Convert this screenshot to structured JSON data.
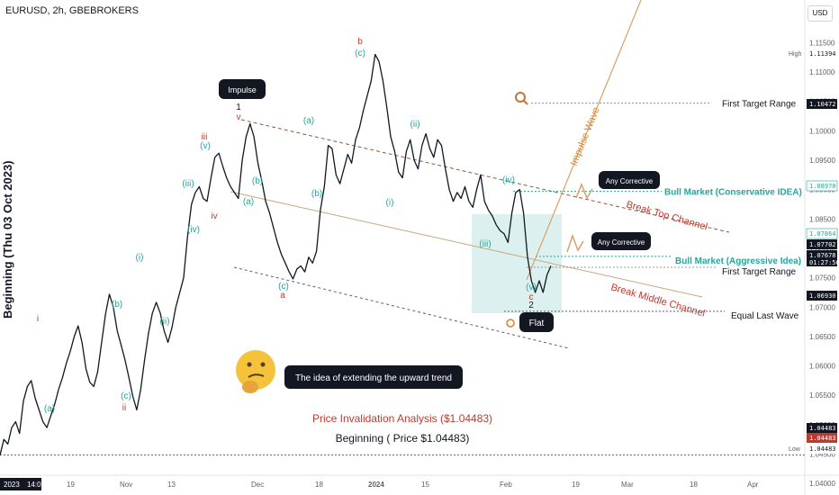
{
  "header": {
    "symbol": "EURUSD, 2h, GBEBROKERS",
    "currency": "USD"
  },
  "left_label": "Beginning (Thu 03 Oct 2023)",
  "chart_data": {
    "type": "line",
    "ylim": [
      1.0414,
      1.1192
    ],
    "price_ticks": [
      "1.11500",
      "1.11000",
      "1.10500",
      "1.10000",
      "1.09500",
      "1.09000",
      "1.08500",
      "1.08000",
      "1.07500",
      "1.07000",
      "1.06500",
      "1.06000",
      "1.05500",
      "1.05000",
      "1.04500",
      "1.04000"
    ],
    "time_ticks": [
      "2023",
      "14:00",
      "19",
      "Nov",
      "13",
      "Dec",
      "18",
      "2024",
      "15",
      "Feb",
      "19",
      "Mar",
      "18",
      "Apr"
    ],
    "price_path": [
      [
        0,
        1.0448
      ],
      [
        1,
        1.0475
      ],
      [
        2,
        1.0467
      ],
      [
        3,
        1.0495
      ],
      [
        4,
        1.0505
      ],
      [
        5,
        1.0485
      ],
      [
        6,
        1.054
      ],
      [
        7,
        1.0565
      ],
      [
        8,
        1.0575
      ],
      [
        9,
        1.0545
      ],
      [
        10,
        1.0525
      ],
      [
        11,
        1.0505
      ],
      [
        12,
        1.0495
      ],
      [
        13,
        1.0515
      ],
      [
        14,
        1.0535
      ],
      [
        15,
        1.056
      ],
      [
        16,
        1.058
      ],
      [
        17,
        1.0605
      ],
      [
        18,
        1.0625
      ],
      [
        19,
        1.065
      ],
      [
        20,
        1.0668
      ],
      [
        21,
        1.064
      ],
      [
        22,
        1.0595
      ],
      [
        23,
        1.0572
      ],
      [
        24,
        1.0565
      ],
      [
        25,
        1.059
      ],
      [
        26,
        1.064
      ],
      [
        27,
        1.0688
      ],
      [
        28,
        1.0722
      ],
      [
        29,
        1.07
      ],
      [
        30,
        1.066
      ],
      [
        31,
        1.0635
      ],
      [
        32,
        1.061
      ],
      [
        33,
        1.058
      ],
      [
        34,
        1.0548
      ],
      [
        35,
        1.0525
      ],
      [
        36,
        1.056
      ],
      [
        37,
        1.061
      ],
      [
        38,
        1.0655
      ],
      [
        39,
        1.069
      ],
      [
        40,
        1.0708
      ],
      [
        41,
        1.069
      ],
      [
        42,
        1.066
      ],
      [
        43,
        1.064
      ],
      [
        44,
        1.0665
      ],
      [
        45,
        1.07
      ],
      [
        46,
        1.0725
      ],
      [
        47,
        1.075
      ],
      [
        48,
        1.082
      ],
      [
        49,
        1.0875
      ],
      [
        50,
        1.0895
      ],
      [
        51,
        1.0905
      ],
      [
        52,
        1.0885
      ],
      [
        53,
        1.088
      ],
      [
        54,
        1.092
      ],
      [
        55,
        1.0955
      ],
      [
        56,
        1.0962
      ],
      [
        57,
        1.094
      ],
      [
        58,
        1.092
      ],
      [
        59,
        1.0905
      ],
      [
        60,
        1.0895
      ],
      [
        61,
        1.0885
      ],
      [
        62,
        1.095
      ],
      [
        63,
        1.099
      ],
      [
        64,
        1.1012
      ],
      [
        65,
        1.099
      ],
      [
        66,
        1.0945
      ],
      [
        67,
        1.0915
      ],
      [
        68,
        1.088
      ],
      [
        69,
        1.086
      ],
      [
        70,
        1.0835
      ],
      [
        71,
        1.081
      ],
      [
        72,
        1.079
      ],
      [
        73,
        1.0775
      ],
      [
        74,
        1.076
      ],
      [
        75,
        1.0748
      ],
      [
        76,
        1.0765
      ],
      [
        77,
        1.077
      ],
      [
        78,
        1.076
      ],
      [
        79,
        1.0785
      ],
      [
        80,
        1.0775
      ],
      [
        81,
        1.0795
      ],
      [
        82,
        1.0865
      ],
      [
        83,
        1.0905
      ],
      [
        84,
        1.0975
      ],
      [
        85,
        1.097
      ],
      [
        86,
        1.0925
      ],
      [
        87,
        1.091
      ],
      [
        88,
        1.0935
      ],
      [
        89,
        1.096
      ],
      [
        90,
        1.0945
      ],
      [
        91,
        1.0985
      ],
      [
        92,
        1.1005
      ],
      [
        93,
        1.1035
      ],
      [
        94,
        1.106
      ],
      [
        95,
        1.1085
      ],
      [
        96,
        1.113
      ],
      [
        97,
        1.1118
      ],
      [
        98,
        1.1085
      ],
      [
        99,
        1.104
      ],
      [
        100,
        1.099
      ],
      [
        101,
        1.0965
      ],
      [
        102,
        1.093
      ],
      [
        103,
        1.092
      ],
      [
        104,
        1.0965
      ],
      [
        105,
        1.0985
      ],
      [
        106,
        1.095
      ],
      [
        107,
        1.0935
      ],
      [
        108,
        1.0975
      ],
      [
        109,
        1.0995
      ],
      [
        110,
        1.097
      ],
      [
        111,
        1.0955
      ],
      [
        112,
        1.0985
      ],
      [
        113,
        1.0975
      ],
      [
        114,
        1.0935
      ],
      [
        115,
        1.09
      ],
      [
        116,
        1.088
      ],
      [
        117,
        1.0895
      ],
      [
        118,
        1.0885
      ],
      [
        119,
        1.0905
      ],
      [
        120,
        1.088
      ],
      [
        121,
        1.087
      ],
      [
        122,
        1.09
      ],
      [
        123,
        1.0925
      ],
      [
        124,
        1.088
      ],
      [
        125,
        1.0865
      ],
      [
        126,
        1.0855
      ],
      [
        127,
        1.084
      ],
      [
        128,
        1.083
      ],
      [
        129,
        1.0825
      ],
      [
        130,
        1.081
      ],
      [
        131,
        1.086
      ],
      [
        132,
        1.0895
      ],
      [
        133,
        1.09
      ],
      [
        134,
        1.086
      ],
      [
        135,
        1.0785
      ],
      [
        136,
        1.0745
      ],
      [
        137,
        1.0725
      ],
      [
        138,
        1.0745
      ],
      [
        139,
        1.0725
      ],
      [
        140,
        1.0755
      ],
      [
        141,
        1.077
      ]
    ],
    "price_labels": [
      {
        "text": "High",
        "value": "1.11394",
        "style": "plain"
      },
      {
        "text": "First Target Range",
        "value": "1.10472",
        "style": "dark"
      },
      {
        "text": "Bull Market (Conservative IDEA)",
        "value": "1.08970",
        "style": "teal"
      },
      {
        "text": "Bull Market (Aggressive Idea)",
        "value": "1.07864",
        "style": "light"
      },
      {
        "text": "",
        "value": "1.07702",
        "style": "dark"
      },
      {
        "text": "First Target Range",
        "value": "1.07678",
        "sub": "01:27:56",
        "style": "dark"
      },
      {
        "text": "Equal Last Wave",
        "value": "1.06930",
        "style": "dark"
      },
      {
        "text": "",
        "value": "1.04483",
        "style": "dark"
      },
      {
        "text": "",
        "value": "1.04483",
        "style": "red"
      },
      {
        "text": "Low",
        "value": "1.04483",
        "style": "plain"
      }
    ],
    "callouts": {
      "impulse": "Impulse",
      "any_corrective": "Any Corrective",
      "flat": "Flat",
      "idea": "The idea of extending the upward trend"
    },
    "annotations": {
      "break_top": "Break Top Channel",
      "break_middle": "Break Middle Channel",
      "impulse_wave": "Impulse Wave",
      "invalidation": "Price Invalidation Analysis ($1.04483)",
      "beginning": "Beginning ( Price $1.04483)"
    },
    "wave_labels": [
      {
        "text": "(a)",
        "color": "teal"
      },
      {
        "text": "i",
        "color": "red"
      },
      {
        "text": "(b)",
        "color": "teal"
      },
      {
        "text": "(c)",
        "color": "teal"
      },
      {
        "text": "ii",
        "color": "red"
      },
      {
        "text": "(i)",
        "color": "teal"
      },
      {
        "text": "(ii)",
        "color": "teal"
      },
      {
        "text": "(iii)",
        "color": "teal"
      },
      {
        "text": "(iv)",
        "color": "teal"
      },
      {
        "text": "iii",
        "color": "red"
      },
      {
        "text": "(v)",
        "color": "teal"
      },
      {
        "text": "iv",
        "color": "red"
      },
      {
        "text": "1",
        "color": "dark"
      },
      {
        "text": "v",
        "color": "red"
      },
      {
        "text": "(a)",
        "color": "teal"
      },
      {
        "text": "(b)",
        "color": "teal"
      },
      {
        "text": "(c)",
        "color": "teal"
      },
      {
        "text": "a",
        "color": "red"
      },
      {
        "text": "(a)",
        "color": "teal"
      },
      {
        "text": "(b)",
        "color": "teal"
      },
      {
        "text": "b",
        "color": "red"
      },
      {
        "text": "(c)",
        "color": "teal"
      },
      {
        "text": "(i)",
        "color": "teal"
      },
      {
        "text": "(ii)",
        "color": "teal"
      },
      {
        "text": "(iii)",
        "color": "teal"
      },
      {
        "text": "(iv)",
        "color": "teal"
      },
      {
        "text": "(v)",
        "color": "teal"
      },
      {
        "text": "c",
        "color": "red"
      },
      {
        "text": "2",
        "color": "dark"
      }
    ],
    "colors": {
      "price": "#131722",
      "teal": "#26a69a",
      "red": "#c0392b",
      "orange": "#d9822b",
      "brown": "#8d5a3b",
      "box": "#b2dfdb"
    }
  }
}
